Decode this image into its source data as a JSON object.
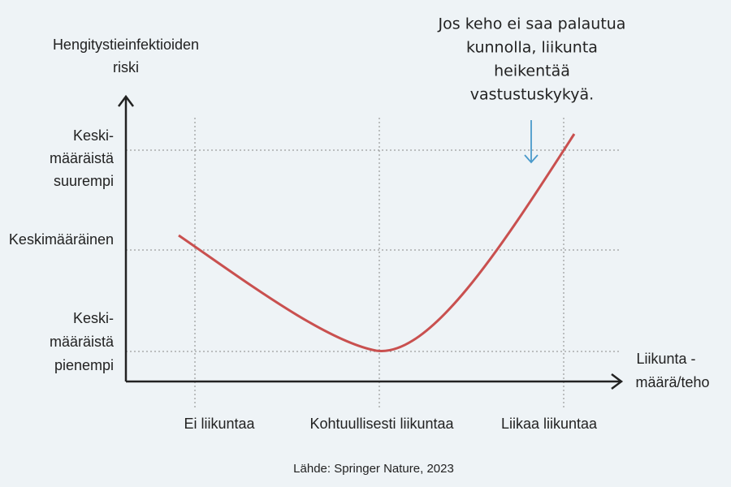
{
  "y_axis": {
    "title": [
      "Hengitystieinfektioiden",
      "riski"
    ],
    "levels": [
      [
        "Keski-",
        "määräistä",
        "suurempi"
      ],
      [
        "Keskimääräinen"
      ],
      [
        "Keski-",
        "määräistä",
        "pienempi"
      ]
    ]
  },
  "x_axis": {
    "title": [
      "Liikunta -",
      "määrä/teho"
    ],
    "categories": [
      "Ei liikuntaa",
      "Kohtuullisesti liikuntaa",
      "Liikaa liikuntaa"
    ]
  },
  "annotation": [
    "Jos keho ei saa palautua",
    "kunnolla, liikunta",
    "heikentää",
    "vastustuskykyä."
  ],
  "source": "Lähde: Springer Nature, 2023"
}
